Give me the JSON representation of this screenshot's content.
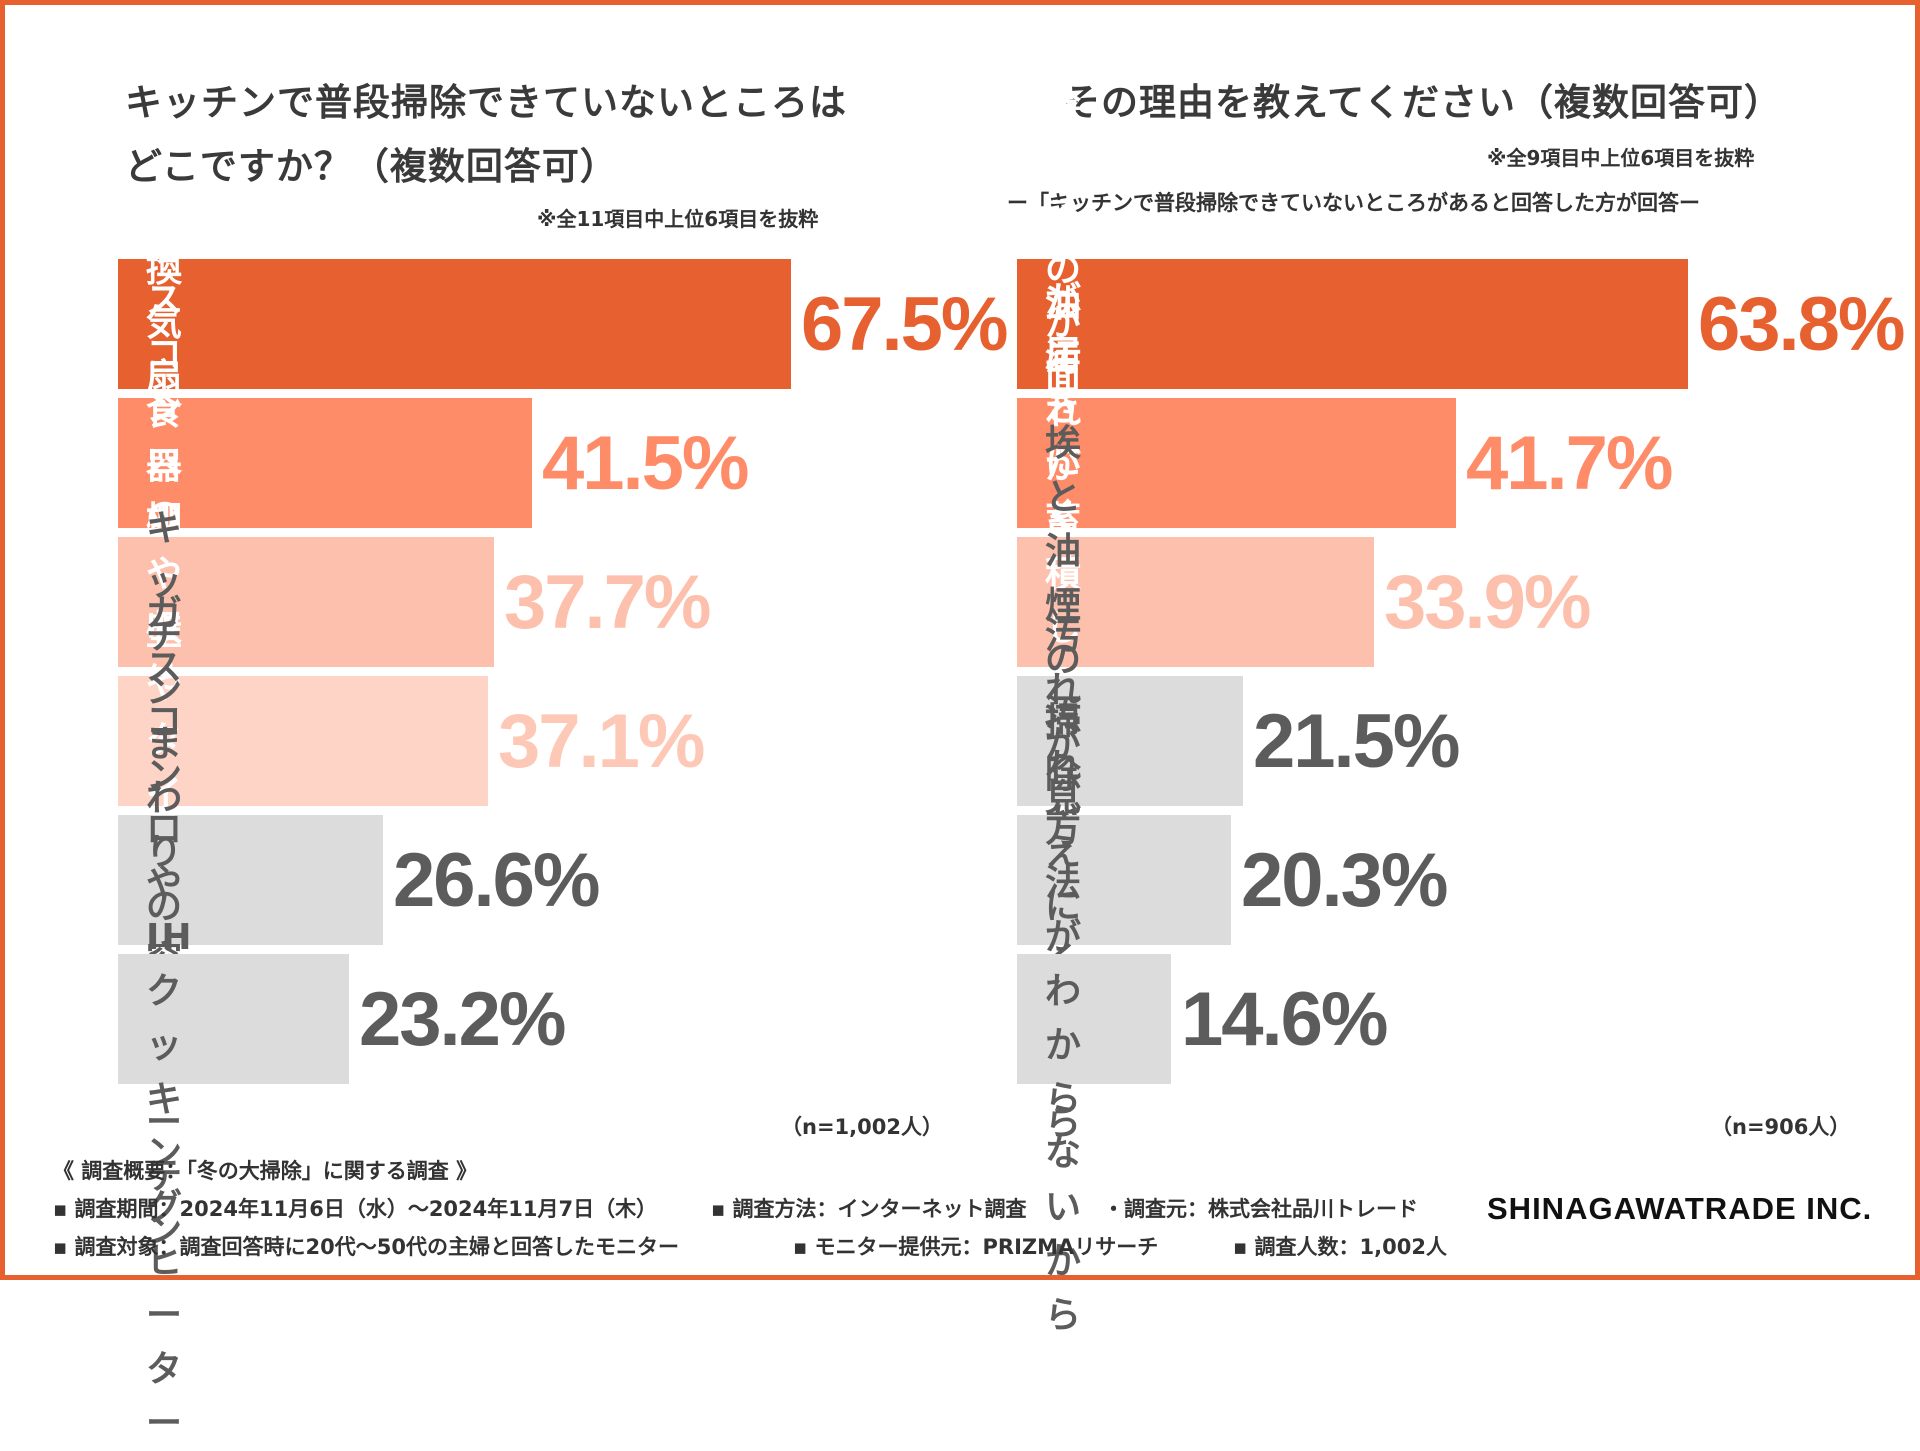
{
  "chart_data": [
    {
      "type": "bar",
      "title": "キッチンで普段掃除できていないところは\nどこですか？（複数回答可）",
      "note": "※全11項目中上位6項目を抜粋",
      "sample": "（n=1,002人）",
      "unit": "%",
      "ylim": [
        0,
        100
      ],
      "categories": [
        "換気扇",
        "ガスコンロの排気口",
        "食器棚や収納の中",
        "壁やタイル",
        "キッチンまわりの\n窓やカーテン",
        "ガスコンロや\nIHクッキングヒーター"
      ],
      "values": [
        67.5,
        41.5,
        37.7,
        37.1,
        26.6,
        23.2
      ],
      "labels": [
        "67.5%",
        "41.5%",
        "37.7%",
        "37.1%",
        "26.6%",
        "23.2%"
      ],
      "colors": [
        "#E6612F",
        "#FF8C69",
        "#FDC0AC",
        "#FED4C6",
        "#DCDCDC",
        "#DCDCDC"
      ],
      "value_colors": [
        "#E6612F",
        "#FF8C69",
        "#FDC0AC",
        "#FDC8B6",
        "#5C5C5C",
        "#5C5C5C"
      ],
      "label_colors": [
        "#ffffff",
        "#ffffff",
        "#ffffff",
        "#ffffff",
        "#5C5C5C",
        "#5C5C5C"
      ]
    },
    {
      "type": "bar",
      "title": "その理由を教えてください（複数回答可）",
      "note": "※全9項目中上位6項目を抜粋",
      "subnote": "ー「キッチンで普段掃除できていないところがあると回答した方が回答ー",
      "sample": "（n=906人）",
      "unit": "%",
      "ylim": [
        0,
        100
      ],
      "categories": [
        "掃除するのが面倒だから",
        "手が届きにくいから",
        "油汚れが蓄積しているから",
        "埃と油煙の汚れがあるから",
        "汚れが見えにくいから",
        "掃除方法がわからないから"
      ],
      "values": [
        63.8,
        41.7,
        33.9,
        21.5,
        20.3,
        14.6
      ],
      "labels": [
        "63.8%",
        "41.7%",
        "33.9%",
        "21.5%",
        "20.3%",
        "14.6%"
      ],
      "colors": [
        "#E6612F",
        "#FF8C69",
        "#FDC0AC",
        "#DCDCDC",
        "#DCDCDC",
        "#DCDCDC"
      ],
      "value_colors": [
        "#E6612F",
        "#FF8C69",
        "#FDC0AC",
        "#5C5C5C",
        "#5C5C5C",
        "#5C5C5C"
      ],
      "label_colors": [
        "#ffffff",
        "#ffffff",
        "#ffffff",
        "#5C5C5C",
        "#5C5C5C",
        "#5C5C5C"
      ]
    }
  ],
  "footer": {
    "heading": "《 調査概要：「冬の大掃除」に関する調査 》",
    "row1": [
      "▪ 調査期間：2024年11月6日（水）〜2024年11月7日（木）",
      "▪ 調査方法：インターネット調査",
      "・調査元：株式会社品川トレード"
    ],
    "row2": [
      "▪ 調査対象：調査回答時に20代〜50代の主婦と回答したモニター",
      "▪ モニター提供元：PRIZMAリサーチ",
      "▪ 調査人数：1,002人"
    ],
    "logo": "SHINAGAWATRADE INC."
  },
  "colors": {
    "accent": "#E6612F",
    "border": "#E6612F",
    "text": "#3a3a3a",
    "gray_bar": "#DCDCDC",
    "gray_text": "#5C5C5C"
  }
}
